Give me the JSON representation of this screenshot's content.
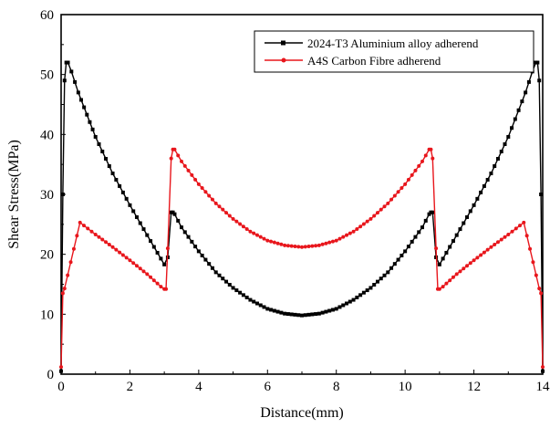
{
  "chart_data": {
    "type": "line",
    "title": "",
    "xlabel": "Distance(mm)",
    "ylabel": "Shear Stress(MPa)",
    "xlim": [
      0,
      14
    ],
    "ylim": [
      0,
      60
    ],
    "xticks": [
      "0",
      "2",
      "4",
      "6",
      "8",
      "10",
      "12",
      "14"
    ],
    "yticks": [
      "0",
      "10",
      "20",
      "30",
      "40",
      "50",
      "60"
    ],
    "grid": false,
    "legend_position": "top-right",
    "series": [
      {
        "name": "2024-T3 Aluminium alloy adherend",
        "color": "#000000",
        "marker": "square",
        "x": [
          0.0,
          0.05,
          0.1,
          0.15,
          0.2,
          0.3,
          0.5,
          0.75,
          1.0,
          1.5,
          2.0,
          2.5,
          3.0,
          3.1,
          3.2,
          3.25,
          3.3,
          3.5,
          4.0,
          4.5,
          5.0,
          5.5,
          6.0,
          6.5,
          7.0,
          7.5,
          8.0,
          8.5,
          9.0,
          9.5,
          10.0,
          10.5,
          10.7,
          10.75,
          10.8,
          10.9,
          11.0,
          11.5,
          12.0,
          12.5,
          13.0,
          13.5,
          13.7,
          13.8,
          13.85,
          13.9,
          13.95,
          14.0
        ],
        "y": [
          0.5,
          30,
          49,
          52,
          52,
          50.5,
          47,
          43.3,
          39.6,
          33.5,
          28.2,
          23.2,
          18.3,
          19.5,
          27,
          27,
          26.7,
          24.5,
          20.5,
          17,
          14.4,
          12.4,
          10.9,
          10.1,
          9.8,
          10.1,
          10.9,
          12.4,
          14.4,
          17,
          20.5,
          24.5,
          26.7,
          27,
          27,
          19.5,
          18.3,
          23.2,
          28.2,
          33.5,
          39.6,
          47,
          50.5,
          52,
          52,
          49,
          30,
          0.5
        ]
      },
      {
        "name": "A4S Carbon Fibre adherend",
        "color": "#e8161c",
        "marker": "circle",
        "x": [
          0.0,
          0.05,
          0.1,
          0.55,
          1.0,
          1.5,
          2.0,
          2.5,
          2.9,
          3.0,
          3.05,
          3.1,
          3.2,
          3.25,
          3.3,
          3.5,
          4.0,
          4.5,
          5.0,
          5.5,
          6.0,
          6.5,
          7.0,
          7.5,
          8.0,
          8.5,
          9.0,
          9.5,
          10.0,
          10.5,
          10.7,
          10.75,
          10.8,
          10.9,
          10.95,
          11.0,
          11.1,
          11.5,
          12.0,
          12.5,
          13.0,
          13.45,
          13.9,
          13.95,
          14.0
        ],
        "y": [
          1.2,
          13.5,
          14.3,
          25.3,
          23.3,
          21.2,
          19,
          16.7,
          14.6,
          14.2,
          14.2,
          21,
          36,
          37.5,
          37.5,
          35.5,
          31.7,
          28.5,
          25.9,
          23.8,
          22.3,
          21.5,
          21.2,
          21.5,
          22.3,
          23.8,
          25.9,
          28.5,
          31.7,
          35.5,
          37.5,
          37.5,
          36,
          21,
          14.2,
          14.2,
          14.6,
          16.7,
          19,
          21.2,
          23.3,
          25.3,
          14.3,
          13.5,
          1.2
        ]
      }
    ]
  }
}
